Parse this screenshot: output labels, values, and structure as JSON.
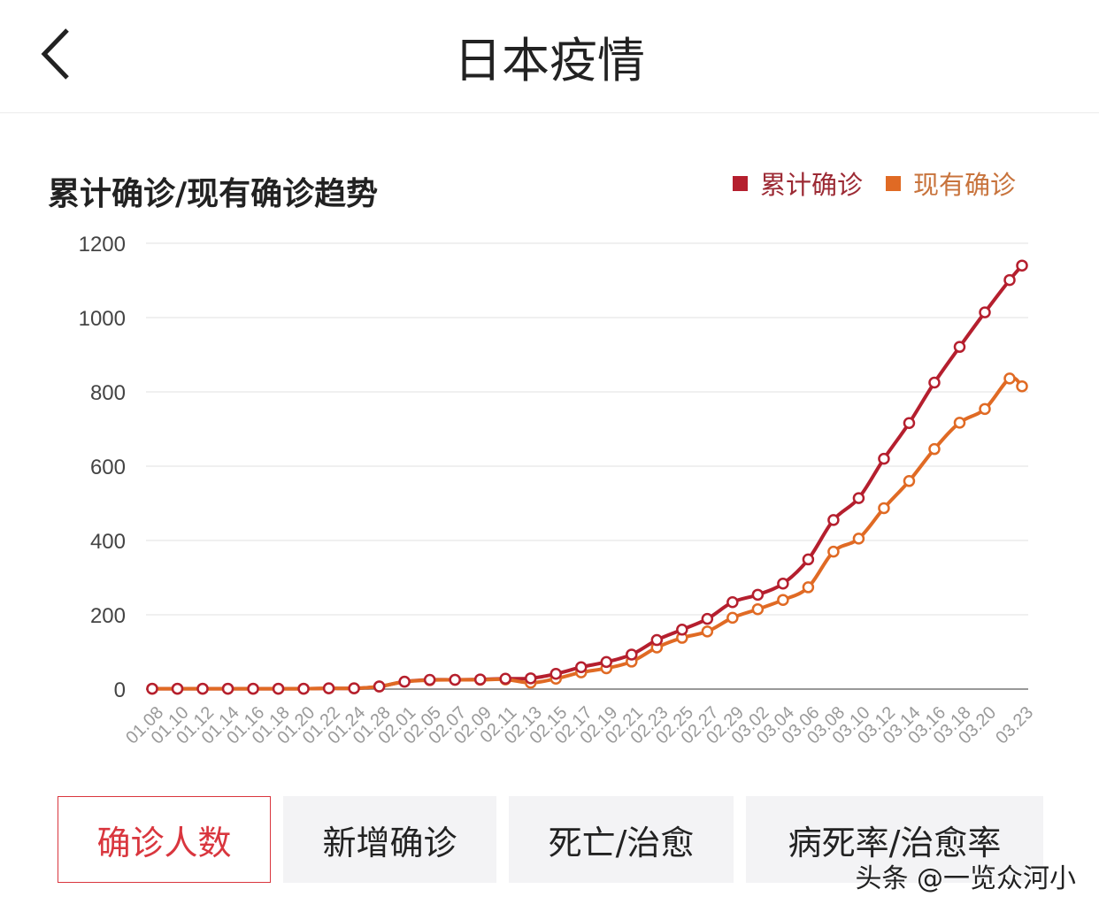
{
  "header": {
    "title": "日本疫情"
  },
  "buttons": [
    {
      "label": "确诊人数",
      "selected": true
    },
    {
      "label": "新增确诊"
    },
    {
      "label": "死亡/治愈"
    },
    {
      "label": "病死率/治愈率"
    }
  ],
  "watermark": "头条 @一览众河小",
  "chart_data": {
    "type": "line",
    "title": "累计确诊/现有确诊趋势",
    "legend_position": "top-right",
    "ylim": [
      0,
      1200
    ],
    "yticks": [
      0,
      200,
      400,
      600,
      800,
      1000,
      1200
    ],
    "grid": true,
    "categories": [
      "01.08",
      "01.10",
      "01.12",
      "01.14",
      "01.16",
      "01.18",
      "01.20",
      "01.22",
      "01.24",
      "01.28",
      "02.01",
      "02.05",
      "02.07",
      "02.09",
      "02.11",
      "02.13",
      "02.15",
      "02.17",
      "02.19",
      "02.21",
      "02.23",
      "02.25",
      "02.27",
      "02.29",
      "03.02",
      "03.04",
      "03.06",
      "03.08",
      "03.10",
      "03.12",
      "03.14",
      "03.16",
      "03.18",
      "03.20",
      "",
      "03.23"
    ],
    "series": [
      {
        "name": "累计确诊",
        "color": "#b51f2e",
        "values": [
          1,
          1,
          1,
          1,
          1,
          1,
          1,
          2,
          2,
          7,
          20,
          25,
          25,
          26,
          28,
          29,
          41,
          59,
          73,
          93,
          132,
          160,
          189,
          234,
          254,
          284,
          349,
          455,
          514,
          620,
          716,
          825,
          921,
          1014,
          1101,
          1140
        ]
      },
      {
        "name": "现有确诊",
        "color": "#e06a24",
        "values": [
          1,
          1,
          1,
          1,
          1,
          1,
          1,
          2,
          2,
          7,
          20,
          24,
          25,
          25,
          26,
          17,
          28,
          45,
          56,
          74,
          112,
          138,
          155,
          192,
          215,
          240,
          274,
          370,
          405,
          487,
          560,
          646,
          717,
          754,
          836,
          815
        ]
      }
    ]
  }
}
